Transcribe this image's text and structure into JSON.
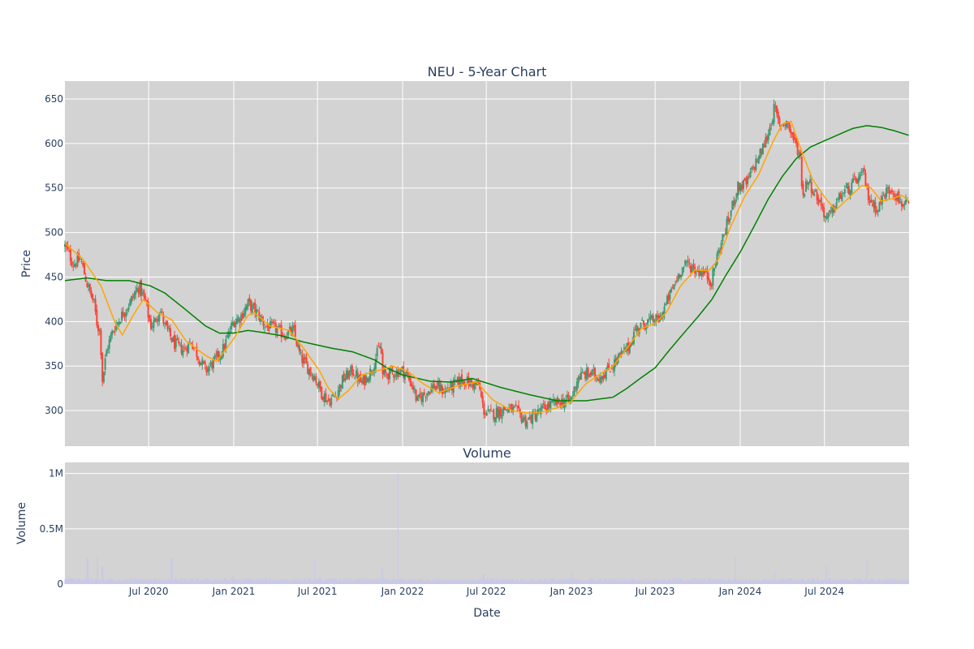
{
  "colors": {
    "plot_bg": "#d3d3d3",
    "grid": "#ffffff",
    "up": "#3d9970",
    "down": "#ff4136",
    "ma_short": "#ffa500",
    "ma_long": "#008000",
    "volume": "#c8c8e8",
    "text": "#2a3f5f"
  },
  "chart_data": [
    {
      "type": "candlestick",
      "title": "NEU - 5-Year Chart",
      "ylabel": "Price",
      "xlabel": "",
      "ylim": [
        260,
        670
      ],
      "xlim": [
        "2020-01-02",
        "2024-12-31"
      ],
      "yticks": [
        300,
        350,
        400,
        450,
        500,
        550,
        600,
        650
      ],
      "grid": true,
      "price_anchors": [
        [
          "2020-01-02",
          485
        ],
        [
          "2020-01-20",
          465
        ],
        [
          "2020-02-05",
          470
        ],
        [
          "2020-02-20",
          440
        ],
        [
          "2020-03-05",
          420
        ],
        [
          "2020-03-12",
          395
        ],
        [
          "2020-03-18",
          390
        ],
        [
          "2020-03-23",
          335
        ],
        [
          "2020-03-26",
          345
        ],
        [
          "2020-04-02",
          370
        ],
        [
          "2020-04-15",
          390
        ],
        [
          "2020-05-01",
          405
        ],
        [
          "2020-05-20",
          420
        ],
        [
          "2020-06-10",
          440
        ],
        [
          "2020-06-25",
          420
        ],
        [
          "2020-07-05",
          395
        ],
        [
          "2020-07-15",
          400
        ],
        [
          "2020-07-25",
          415
        ],
        [
          "2020-08-05",
          395
        ],
        [
          "2020-08-25",
          375
        ],
        [
          "2020-09-15",
          368
        ],
        [
          "2020-10-01",
          378
        ],
        [
          "2020-10-15",
          362
        ],
        [
          "2020-11-01",
          345
        ],
        [
          "2020-11-20",
          355
        ],
        [
          "2020-12-10",
          370
        ],
        [
          "2020-12-31",
          400
        ],
        [
          "2021-01-15",
          405
        ],
        [
          "2021-02-01",
          420
        ],
        [
          "2021-02-20",
          410
        ],
        [
          "2021-03-10",
          395
        ],
        [
          "2021-04-01",
          392
        ],
        [
          "2021-04-20",
          385
        ],
        [
          "2021-05-10",
          390
        ],
        [
          "2021-05-25",
          360
        ],
        [
          "2021-06-10",
          348
        ],
        [
          "2021-06-25",
          338
        ],
        [
          "2021-07-10",
          320
        ],
        [
          "2021-07-25",
          310
        ],
        [
          "2021-08-10",
          318
        ],
        [
          "2021-08-25",
          335
        ],
        [
          "2021-09-15",
          345
        ],
        [
          "2021-10-05",
          330
        ],
        [
          "2021-10-25",
          345
        ],
        [
          "2021-11-10",
          368
        ],
        [
          "2021-11-15",
          375
        ],
        [
          "2021-11-18",
          340
        ],
        [
          "2021-12-10",
          342
        ],
        [
          "2021-12-31",
          345
        ],
        [
          "2022-01-10",
          340
        ],
        [
          "2022-01-25",
          325
        ],
        [
          "2022-02-01",
          310
        ],
        [
          "2022-02-20",
          320
        ],
        [
          "2022-03-10",
          328
        ],
        [
          "2022-04-01",
          322
        ],
        [
          "2022-04-20",
          328
        ],
        [
          "2022-05-10",
          335
        ],
        [
          "2022-06-01",
          330
        ],
        [
          "2022-06-15",
          328
        ],
        [
          "2022-06-25",
          300
        ],
        [
          "2022-07-10",
          295
        ],
        [
          "2022-08-10",
          302
        ],
        [
          "2022-09-01",
          300
        ],
        [
          "2022-09-25",
          288
        ],
        [
          "2022-10-15",
          295
        ],
        [
          "2022-11-10",
          305
        ],
        [
          "2022-12-10",
          310
        ],
        [
          "2022-12-31",
          312
        ],
        [
          "2023-01-15",
          338
        ],
        [
          "2023-02-10",
          342
        ],
        [
          "2023-03-01",
          338
        ],
        [
          "2023-03-20",
          345
        ],
        [
          "2023-04-15",
          360
        ],
        [
          "2023-05-05",
          372
        ],
        [
          "2023-05-20",
          392
        ],
        [
          "2023-06-15",
          400
        ],
        [
          "2023-07-10",
          402
        ],
        [
          "2023-07-25",
          420
        ],
        [
          "2023-08-10",
          440
        ],
        [
          "2023-08-25",
          458
        ],
        [
          "2023-09-10",
          465
        ],
        [
          "2023-09-25",
          458
        ],
        [
          "2023-10-15",
          455
        ],
        [
          "2023-10-31",
          445
        ],
        [
          "2023-11-10",
          470
        ],
        [
          "2023-11-25",
          495
        ],
        [
          "2023-12-10",
          520
        ],
        [
          "2023-12-25",
          550
        ],
        [
          "2024-01-15",
          555
        ],
        [
          "2024-01-31",
          575
        ],
        [
          "2024-02-15",
          590
        ],
        [
          "2024-03-01",
          610
        ],
        [
          "2024-03-15",
          640
        ],
        [
          "2024-03-25",
          620
        ],
        [
          "2024-04-10",
          625
        ],
        [
          "2024-04-25",
          605
        ],
        [
          "2024-05-10",
          585
        ],
        [
          "2024-05-15",
          540
        ],
        [
          "2024-05-25",
          560
        ],
        [
          "2024-06-10",
          545
        ],
        [
          "2024-06-25",
          530
        ],
        [
          "2024-07-05",
          515
        ],
        [
          "2024-07-15",
          520
        ],
        [
          "2024-07-25",
          532
        ],
        [
          "2024-08-10",
          545
        ],
        [
          "2024-08-25",
          550
        ],
        [
          "2024-09-10",
          560
        ],
        [
          "2024-09-25",
          565
        ],
        [
          "2024-10-01",
          545
        ],
        [
          "2024-10-15",
          530
        ],
        [
          "2024-10-25",
          528
        ],
        [
          "2024-11-10",
          545
        ],
        [
          "2024-11-25",
          550
        ],
        [
          "2024-12-10",
          535
        ],
        [
          "2024-12-31",
          528
        ]
      ],
      "ma_short_anchors": [
        [
          "2020-01-02",
          488
        ],
        [
          "2020-02-10",
          470
        ],
        [
          "2020-03-20",
          440
        ],
        [
          "2020-04-20",
          398
        ],
        [
          "2020-05-05",
          385
        ],
        [
          "2020-06-01",
          410
        ],
        [
          "2020-06-20",
          425
        ],
        [
          "2020-07-20",
          410
        ],
        [
          "2020-08-20",
          402
        ],
        [
          "2020-09-20",
          378
        ],
        [
          "2020-11-01",
          362
        ],
        [
          "2020-11-25",
          355
        ],
        [
          "2020-12-31",
          380
        ],
        [
          "2021-02-01",
          407
        ],
        [
          "2021-02-15",
          410
        ],
        [
          "2021-03-20",
          395
        ],
        [
          "2021-05-01",
          390
        ],
        [
          "2021-06-01",
          370
        ],
        [
          "2021-07-05",
          345
        ],
        [
          "2021-07-25",
          325
        ],
        [
          "2021-08-15",
          313
        ],
        [
          "2021-09-05",
          322
        ],
        [
          "2021-10-05",
          340
        ],
        [
          "2021-11-10",
          345
        ],
        [
          "2021-12-10",
          350
        ],
        [
          "2022-01-10",
          345
        ],
        [
          "2022-02-15",
          330
        ],
        [
          "2022-03-20",
          320
        ],
        [
          "2022-05-01",
          328
        ],
        [
          "2022-06-10",
          332
        ],
        [
          "2022-07-15",
          312
        ],
        [
          "2022-08-25",
          300
        ],
        [
          "2022-10-01",
          297
        ],
        [
          "2022-10-25",
          298
        ],
        [
          "2022-12-01",
          303
        ],
        [
          "2022-12-31",
          310
        ],
        [
          "2023-02-01",
          330
        ],
        [
          "2023-03-01",
          340
        ],
        [
          "2023-04-01",
          350
        ],
        [
          "2023-05-01",
          370
        ],
        [
          "2023-06-01",
          392
        ],
        [
          "2023-07-01",
          398
        ],
        [
          "2023-07-25",
          410
        ],
        [
          "2023-08-25",
          440
        ],
        [
          "2023-09-25",
          458
        ],
        [
          "2023-10-25",
          457
        ],
        [
          "2023-11-15",
          470
        ],
        [
          "2023-12-10",
          505
        ],
        [
          "2024-01-10",
          540
        ],
        [
          "2024-02-10",
          565
        ],
        [
          "2024-03-10",
          600
        ],
        [
          "2024-04-01",
          622
        ],
        [
          "2024-04-20",
          625
        ],
        [
          "2024-05-10",
          595
        ],
        [
          "2024-06-05",
          560
        ],
        [
          "2024-07-01",
          540
        ],
        [
          "2024-07-25",
          525
        ],
        [
          "2024-08-25",
          540
        ],
        [
          "2024-09-20",
          553
        ],
        [
          "2024-10-10",
          550
        ],
        [
          "2024-11-01",
          535
        ],
        [
          "2024-11-25",
          538
        ],
        [
          "2024-12-15",
          542
        ],
        [
          "2024-12-31",
          535
        ]
      ],
      "ma_long_anchors": [
        [
          "2020-01-02",
          446
        ],
        [
          "2020-02-20",
          449
        ],
        [
          "2020-04-01",
          446
        ],
        [
          "2020-05-20",
          446
        ],
        [
          "2020-07-05",
          440
        ],
        [
          "2020-08-05",
          432
        ],
        [
          "2020-09-15",
          415
        ],
        [
          "2020-11-01",
          395
        ],
        [
          "2020-12-01",
          387
        ],
        [
          "2020-12-31",
          387
        ],
        [
          "2021-02-01",
          390
        ],
        [
          "2021-03-01",
          388
        ],
        [
          "2021-04-15",
          384
        ],
        [
          "2021-06-01",
          377
        ],
        [
          "2021-08-01",
          370
        ],
        [
          "2021-09-15",
          366
        ],
        [
          "2021-11-01",
          357
        ],
        [
          "2021-12-01",
          347
        ],
        [
          "2022-01-01",
          340
        ],
        [
          "2022-03-01",
          333
        ],
        [
          "2022-04-15",
          332
        ],
        [
          "2022-06-01",
          336
        ],
        [
          "2022-08-01",
          326
        ],
        [
          "2022-10-01",
          318
        ],
        [
          "2022-12-01",
          311
        ],
        [
          "2023-02-01",
          311
        ],
        [
          "2023-04-01",
          315
        ],
        [
          "2023-05-01",
          325
        ],
        [
          "2023-06-01",
          337
        ],
        [
          "2023-07-01",
          348
        ],
        [
          "2023-08-01",
          368
        ],
        [
          "2023-09-01",
          387
        ],
        [
          "2023-10-01",
          405
        ],
        [
          "2023-11-01",
          425
        ],
        [
          "2023-12-01",
          452
        ],
        [
          "2024-01-01",
          478
        ],
        [
          "2024-02-01",
          508
        ],
        [
          "2024-03-01",
          537
        ],
        [
          "2024-04-01",
          563
        ],
        [
          "2024-05-01",
          583
        ],
        [
          "2024-06-01",
          596
        ],
        [
          "2024-07-01",
          603
        ],
        [
          "2024-08-01",
          610
        ],
        [
          "2024-09-01",
          617
        ],
        [
          "2024-10-01",
          620
        ],
        [
          "2024-11-01",
          618
        ],
        [
          "2024-12-01",
          614
        ],
        [
          "2024-12-31",
          609
        ]
      ]
    },
    {
      "type": "bar",
      "title": "Volume",
      "ylabel": "Volume",
      "xlabel": "Date",
      "ylim": [
        0,
        1100000
      ],
      "ytick_values": [
        0,
        500000,
        1000000
      ],
      "ytick_labels": [
        "0",
        "0.5M",
        "1M"
      ],
      "xtick_values": [
        "2020-07-01",
        "2021-01-01",
        "2021-07-01",
        "2022-01-01",
        "2022-07-01",
        "2023-01-01",
        "2023-07-01",
        "2024-01-01",
        "2024-07-01"
      ],
      "xtick_labels": [
        "Jul 2020",
        "Jan 2021",
        "Jul 2021",
        "Jan 2022",
        "Jul 2022",
        "Jan 2023",
        "Jul 2023",
        "Jan 2024",
        "Jul 2024"
      ],
      "baseline_volume": 40000,
      "spikes": [
        [
          "2020-02-20",
          230000
        ],
        [
          "2020-03-12",
          260000
        ],
        [
          "2020-03-23",
          160000
        ],
        [
          "2020-08-20",
          240000
        ],
        [
          "2020-12-31",
          80000
        ],
        [
          "2021-06-25",
          230000
        ],
        [
          "2021-11-18",
          150000
        ],
        [
          "2021-12-22",
          1000000
        ],
        [
          "2022-06-25",
          90000
        ],
        [
          "2023-01-02",
          100000
        ],
        [
          "2023-12-22",
          240000
        ],
        [
          "2024-03-15",
          120000
        ],
        [
          "2024-07-05",
          160000
        ],
        [
          "2024-10-01",
          220000
        ]
      ]
    }
  ],
  "labels": {
    "price_title": "NEU - 5-Year Chart",
    "price_ylabel": "Price",
    "volume_title": "Volume",
    "volume_ylabel": "Volume",
    "volume_xlabel": "Date"
  }
}
